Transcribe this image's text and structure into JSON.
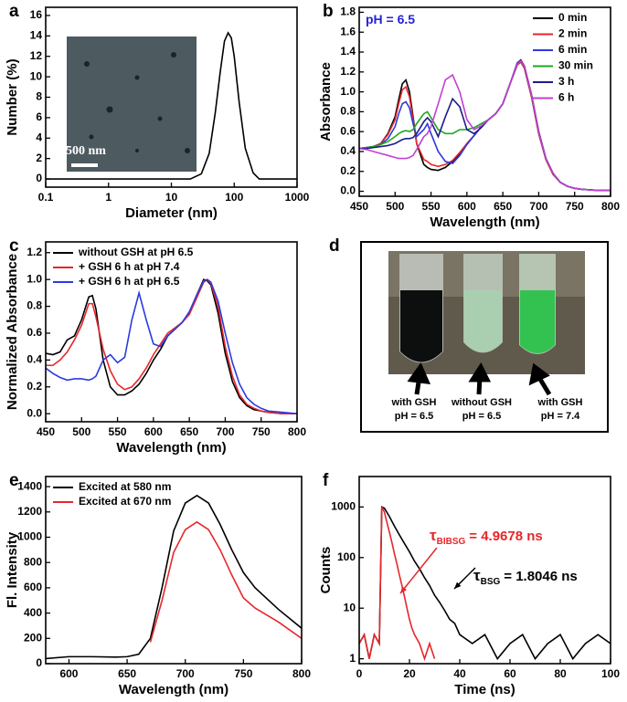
{
  "chart_data": [
    {
      "type": "line",
      "label": "a",
      "x_label": "Diameter (nm)",
      "y_label": "Number (%)",
      "log_x": true,
      "xlim": [
        0.1,
        1000
      ],
      "xticks": [
        0.1,
        1,
        10,
        100,
        1000
      ],
      "ylim": [
        -0.8,
        16.8
      ],
      "yticks": [
        0,
        2,
        4,
        6,
        8,
        10,
        12,
        14,
        16
      ],
      "x": [
        0.1,
        20,
        30,
        40,
        50,
        60,
        70,
        80,
        90,
        100,
        120,
        150,
        200,
        250,
        1000
      ],
      "values": [
        0,
        0,
        0.5,
        2.5,
        6.5,
        10.5,
        13.5,
        14.3,
        13.8,
        12.0,
        7.5,
        3.0,
        0.6,
        0,
        0
      ],
      "color": "#000000",
      "inset": {
        "scale_bar": "500 nm"
      }
    },
    {
      "type": "line",
      "label": "b",
      "x_label": "Wavelength (nm)",
      "y_label": "Absorbance",
      "legend": "upper right",
      "xlim": [
        450,
        800
      ],
      "xticks": [
        450,
        500,
        550,
        600,
        650,
        700,
        750,
        800
      ],
      "ylim": [
        -0.05,
        1.85
      ],
      "yticks": [
        {
          "value": 0,
          "label": "0.0"
        },
        0.2,
        0.4,
        0.6,
        0.8,
        {
          "value": 1,
          "label": "1.0"
        },
        1.2,
        1.4,
        1.6,
        1.8
      ],
      "annotations": [
        {
          "text": "pH = 6.5",
          "color": "#2323d6"
        }
      ],
      "x": [
        450,
        460,
        470,
        480,
        490,
        500,
        505,
        510,
        515,
        520,
        525,
        530,
        540,
        545,
        550,
        560,
        570,
        580,
        590,
        600,
        610,
        620,
        630,
        640,
        650,
        660,
        670,
        675,
        680,
        690,
        700,
        710,
        720,
        730,
        740,
        750,
        760,
        780,
        800
      ],
      "series": [
        {
          "name": "0 min",
          "color": "#000000",
          "values": [
            0.43,
            0.44,
            0.45,
            0.48,
            0.58,
            0.75,
            0.92,
            1.08,
            1.12,
            1.0,
            0.75,
            0.48,
            0.27,
            0.24,
            0.22,
            0.21,
            0.24,
            0.3,
            0.38,
            0.48,
            0.56,
            0.65,
            0.72,
            0.78,
            0.88,
            1.08,
            1.27,
            1.3,
            1.24,
            0.95,
            0.58,
            0.32,
            0.17,
            0.09,
            0.05,
            0.03,
            0.02,
            0.01,
            0.01
          ]
        },
        {
          "name": "2 min",
          "color": "#e8262a",
          "values": [
            0.43,
            0.44,
            0.45,
            0.48,
            0.57,
            0.72,
            0.88,
            1.02,
            1.05,
            0.95,
            0.72,
            0.48,
            0.32,
            0.3,
            0.27,
            0.25,
            0.27,
            0.31,
            0.39,
            0.48,
            0.56,
            0.65,
            0.72,
            0.78,
            0.88,
            1.08,
            1.27,
            1.3,
            1.24,
            0.95,
            0.58,
            0.32,
            0.17,
            0.09,
            0.05,
            0.03,
            0.02,
            0.01,
            0.01
          ]
        },
        {
          "name": "6 min",
          "color": "#2a3be0",
          "values": [
            0.43,
            0.44,
            0.45,
            0.47,
            0.53,
            0.65,
            0.78,
            0.88,
            0.9,
            0.84,
            0.68,
            0.55,
            0.62,
            0.68,
            0.58,
            0.4,
            0.3,
            0.28,
            0.36,
            0.47,
            0.56,
            0.65,
            0.72,
            0.78,
            0.88,
            1.08,
            1.28,
            1.32,
            1.26,
            0.97,
            0.6,
            0.33,
            0.18,
            0.09,
            0.05,
            0.03,
            0.02,
            0.01,
            0.01
          ]
        },
        {
          "name": "30 min",
          "color": "#1fa81f",
          "values": [
            0.43,
            0.44,
            0.45,
            0.47,
            0.5,
            0.55,
            0.58,
            0.6,
            0.61,
            0.6,
            0.62,
            0.68,
            0.78,
            0.8,
            0.74,
            0.62,
            0.58,
            0.58,
            0.62,
            0.62,
            0.64,
            0.68,
            0.72,
            0.78,
            0.88,
            1.08,
            1.28,
            1.31,
            1.26,
            0.97,
            0.6,
            0.33,
            0.18,
            0.09,
            0.05,
            0.03,
            0.02,
            0.01,
            0.01
          ]
        },
        {
          "name": "3 h",
          "color": "#1c1c8a",
          "values": [
            0.43,
            0.43,
            0.44,
            0.45,
            0.46,
            0.48,
            0.5,
            0.52,
            0.53,
            0.53,
            0.54,
            0.58,
            0.7,
            0.74,
            0.7,
            0.55,
            0.75,
            0.93,
            0.85,
            0.62,
            0.58,
            0.64,
            0.72,
            0.78,
            0.88,
            1.08,
            1.29,
            1.32,
            1.26,
            0.97,
            0.6,
            0.33,
            0.18,
            0.09,
            0.05,
            0.03,
            0.02,
            0.01,
            0.01
          ]
        },
        {
          "name": "6 h",
          "color": "#c23fd1",
          "values": [
            0.43,
            0.42,
            0.4,
            0.38,
            0.36,
            0.34,
            0.33,
            0.33,
            0.33,
            0.34,
            0.36,
            0.42,
            0.55,
            0.58,
            0.65,
            0.88,
            1.12,
            1.17,
            1.0,
            0.72,
            0.62,
            0.66,
            0.72,
            0.78,
            0.88,
            1.08,
            1.28,
            1.31,
            1.26,
            0.97,
            0.6,
            0.33,
            0.18,
            0.09,
            0.05,
            0.03,
            0.02,
            0.01,
            0.01
          ]
        }
      ]
    },
    {
      "type": "line",
      "label": "c",
      "x_label": "Wavelength (nm)",
      "y_label": "Normalized Absorbance",
      "legend": "upper left",
      "xlim": [
        450,
        800
      ],
      "xticks": [
        450,
        500,
        550,
        600,
        650,
        700,
        750,
        800
      ],
      "ylim": [
        -0.06,
        1.28
      ],
      "yticks": [
        {
          "value": 0,
          "label": "0.0"
        },
        0.2,
        0.4,
        0.6,
        0.8,
        {
          "value": 1,
          "label": "1.0"
        },
        1.2
      ],
      "x": [
        450,
        460,
        470,
        480,
        490,
        500,
        510,
        515,
        520,
        530,
        540,
        550,
        560,
        570,
        580,
        590,
        600,
        610,
        620,
        630,
        640,
        650,
        660,
        670,
        675,
        680,
        690,
        700,
        710,
        720,
        730,
        740,
        750,
        760,
        780,
        800
      ],
      "series": [
        {
          "name": "without GSH at pH 6.5",
          "color": "#000000",
          "values": [
            0.45,
            0.44,
            0.46,
            0.55,
            0.58,
            0.7,
            0.87,
            0.88,
            0.78,
            0.4,
            0.2,
            0.14,
            0.14,
            0.17,
            0.22,
            0.3,
            0.4,
            0.48,
            0.58,
            0.63,
            0.68,
            0.75,
            0.88,
            1.0,
            0.99,
            0.96,
            0.75,
            0.45,
            0.24,
            0.12,
            0.06,
            0.03,
            0.02,
            0.01,
            0.0,
            0.0
          ]
        },
        {
          "name": "+ GSH 6 h at pH 7.4",
          "color": "#e8262a",
          "values": [
            0.36,
            0.36,
            0.4,
            0.46,
            0.55,
            0.66,
            0.82,
            0.82,
            0.72,
            0.48,
            0.32,
            0.22,
            0.18,
            0.2,
            0.26,
            0.34,
            0.44,
            0.52,
            0.6,
            0.64,
            0.68,
            0.74,
            0.86,
            0.98,
            1.0,
            0.97,
            0.8,
            0.5,
            0.28,
            0.14,
            0.07,
            0.04,
            0.02,
            0.01,
            0.0,
            0.0
          ]
        },
        {
          "name": "+ GSH 6 h at pH 6.5",
          "color": "#2a3be0",
          "values": [
            0.34,
            0.3,
            0.27,
            0.25,
            0.26,
            0.26,
            0.25,
            0.26,
            0.28,
            0.4,
            0.44,
            0.38,
            0.42,
            0.7,
            0.9,
            0.7,
            0.52,
            0.5,
            0.58,
            0.63,
            0.68,
            0.76,
            0.88,
            0.99,
            1.0,
            0.98,
            0.84,
            0.6,
            0.38,
            0.22,
            0.12,
            0.07,
            0.04,
            0.02,
            0.01,
            0.0
          ]
        }
      ]
    },
    {
      "type": "line",
      "label": "e",
      "x_label": "Wavelength (nm)",
      "y_label": "Fl. Intensity",
      "legend": "upper left",
      "xlim": [
        580,
        800
      ],
      "xticks": [
        600,
        650,
        700,
        750,
        800
      ],
      "ylim": [
        0,
        1480
      ],
      "yticks": [
        0,
        200,
        400,
        600,
        800,
        1000,
        1200,
        1400
      ],
      "x": [
        580,
        600,
        620,
        640,
        650,
        660,
        670,
        680,
        690,
        700,
        710,
        720,
        730,
        740,
        750,
        760,
        780,
        800
      ],
      "series": [
        {
          "name": "Excited at 580 nm",
          "color": "#000000",
          "values": [
            40,
            55,
            55,
            52,
            55,
            75,
            200,
            600,
            1050,
            1270,
            1330,
            1270,
            1100,
            900,
            720,
            600,
            430,
            280
          ]
        },
        {
          "name": "Excited at 670 nm",
          "color": "#e8262a",
          "values": [
            null,
            null,
            null,
            null,
            null,
            null,
            170,
            500,
            880,
            1060,
            1120,
            1060,
            900,
            700,
            520,
            440,
            330,
            200
          ]
        }
      ]
    },
    {
      "type": "line",
      "label": "f",
      "x_label": "Time (ns)",
      "y_label": "Counts",
      "log_y": true,
      "xlim": [
        0,
        100
      ],
      "xticks": [
        0,
        20,
        40,
        60,
        80,
        100
      ],
      "ylim": [
        0.8,
        4000
      ],
      "yticks": [
        1,
        10,
        100,
        1000
      ],
      "annotations": [
        {
          "symbol": "τ",
          "subscript": "BIBSG",
          "text": "= 4.9678 ns",
          "color": "#e8262a"
        },
        {
          "symbol": "τ",
          "subscript": "BSG",
          "text": "= 1.8046 ns",
          "color": "#000000"
        }
      ],
      "series": [
        {
          "color": "#000000",
          "x": [
            0,
            2,
            4,
            6,
            8,
            9,
            10,
            12,
            14,
            16,
            18,
            20,
            22,
            24,
            26,
            28,
            30,
            32,
            34,
            36,
            38,
            40,
            45,
            50,
            55,
            60,
            65,
            70,
            75,
            80,
            85,
            90,
            95,
            100
          ],
          "values": [
            2,
            3,
            1,
            3,
            2,
            1000,
            950,
            650,
            420,
            280,
            190,
            130,
            85,
            60,
            40,
            28,
            18,
            13,
            9,
            6,
            5,
            3,
            2,
            3,
            1,
            2,
            3,
            1,
            2,
            3,
            1,
            2,
            3,
            2
          ]
        },
        {
          "color": "#e8262a",
          "x": [
            0,
            2,
            4,
            6,
            8,
            9,
            10,
            11,
            12,
            13,
            14,
            15,
            16,
            17,
            18,
            19,
            20,
            21,
            22,
            24,
            26,
            28,
            30
          ],
          "values": [
            2,
            3,
            1,
            3,
            2,
            1000,
            800,
            500,
            320,
            200,
            120,
            75,
            45,
            28,
            17,
            10,
            6,
            4,
            3,
            2,
            1,
            2,
            1
          ]
        }
      ]
    }
  ],
  "panel_d": {
    "label": "d",
    "captions": [
      {
        "line1": "with GSH",
        "line2": "pH = 6.5"
      },
      {
        "line1": "without GSH",
        "line2": "pH = 6.5"
      },
      {
        "line1": "with GSH",
        "line2": "pH = 7.4"
      }
    ]
  }
}
